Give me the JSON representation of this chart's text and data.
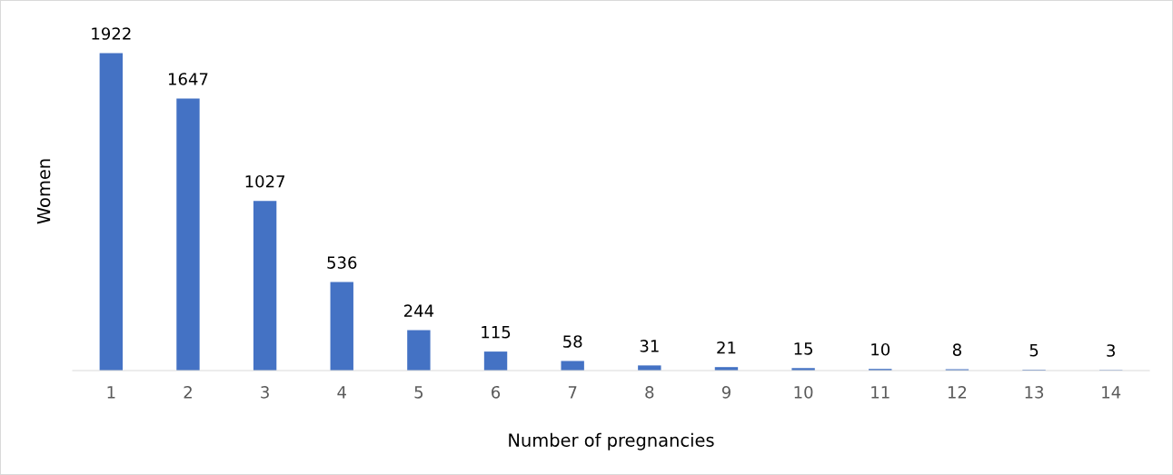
{
  "chart_data": {
    "type": "bar",
    "xlabel": "Number of pregnancies",
    "ylabel": "Women",
    "categories": [
      "1",
      "2",
      "3",
      "4",
      "5",
      "6",
      "7",
      "8",
      "9",
      "10",
      "11",
      "12",
      "13",
      "14"
    ],
    "values": [
      1922,
      1647,
      1027,
      536,
      244,
      115,
      58,
      31,
      21,
      15,
      10,
      8,
      5,
      3
    ],
    "color": "#4472c4",
    "data_labels": true,
    "grid": false,
    "legend": false
  }
}
